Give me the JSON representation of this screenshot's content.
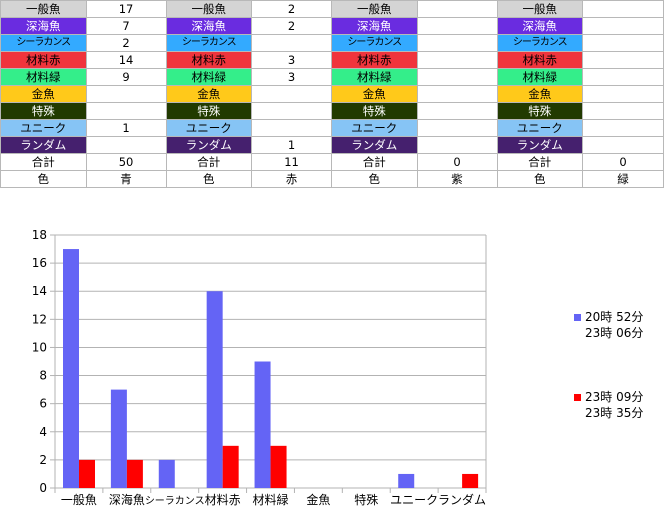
{
  "colors": {
    "一般魚": "#d4d4d4",
    "深海魚": "#6a2ce0",
    "シーラカンス": "#33aaff",
    "材料赤": "#f0343c",
    "材料緑": "#34ee8a",
    "金魚": "#ffc91a",
    "特殊": "#223a00",
    "ユニーク": "#86c4f5",
    "ランダム": "#45206e",
    "series_blue": "#6464f5",
    "series_red": "#ff0000"
  },
  "sheet": {
    "blocks": [
      {
        "rows": [
          {
            "label": "一般魚",
            "value": "17"
          },
          {
            "label": "深海魚",
            "value": "7"
          },
          {
            "label": "シーラカンス",
            "value": "2"
          },
          {
            "label": "材料赤",
            "value": "14"
          },
          {
            "label": "材料緑",
            "value": "9"
          },
          {
            "label": "金魚",
            "value": ""
          },
          {
            "label": "特殊",
            "value": ""
          },
          {
            "label": "ユニーク",
            "value": "1"
          },
          {
            "label": "ランダム",
            "value": ""
          }
        ],
        "total_label": "合計",
        "total": "50",
        "color_label": "色",
        "color": "青"
      },
      {
        "rows": [
          {
            "label": "一般魚",
            "value": "2"
          },
          {
            "label": "深海魚",
            "value": "2"
          },
          {
            "label": "シーラカンス",
            "value": ""
          },
          {
            "label": "材料赤",
            "value": "3"
          },
          {
            "label": "材料緑",
            "value": "3"
          },
          {
            "label": "金魚",
            "value": ""
          },
          {
            "label": "特殊",
            "value": ""
          },
          {
            "label": "ユニーク",
            "value": ""
          },
          {
            "label": "ランダム",
            "value": "1"
          }
        ],
        "total_label": "合計",
        "total": "11",
        "color_label": "色",
        "color": "赤"
      },
      {
        "rows": [
          {
            "label": "一般魚",
            "value": ""
          },
          {
            "label": "深海魚",
            "value": ""
          },
          {
            "label": "シーラカンス",
            "value": ""
          },
          {
            "label": "材料赤",
            "value": ""
          },
          {
            "label": "材料緑",
            "value": ""
          },
          {
            "label": "金魚",
            "value": ""
          },
          {
            "label": "特殊",
            "value": ""
          },
          {
            "label": "ユニーク",
            "value": ""
          },
          {
            "label": "ランダム",
            "value": ""
          }
        ],
        "total_label": "合計",
        "total": "0",
        "color_label": "色",
        "color": "紫"
      },
      {
        "rows": [
          {
            "label": "一般魚",
            "value": ""
          },
          {
            "label": "深海魚",
            "value": ""
          },
          {
            "label": "シーラカンス",
            "value": ""
          },
          {
            "label": "材料赤",
            "value": ""
          },
          {
            "label": "材料緑",
            "value": ""
          },
          {
            "label": "金魚",
            "value": ""
          },
          {
            "label": "特殊",
            "value": ""
          },
          {
            "label": "ユニーク",
            "value": ""
          },
          {
            "label": "ランダム",
            "value": ""
          }
        ],
        "total_label": "合計",
        "total": "0",
        "color_label": "色",
        "color": "緑"
      }
    ]
  },
  "chart_data": {
    "type": "bar",
    "categories": [
      "一般魚",
      "深海魚",
      "シーラカンス",
      "材料赤",
      "材料緑",
      "金魚",
      "特殊",
      "ユニーク",
      "ランダム"
    ],
    "series": [
      {
        "name": "20時 52分\n23時 06分",
        "values": [
          17,
          7,
          2,
          14,
          9,
          0,
          0,
          1,
          0
        ],
        "color": "#6464f5"
      },
      {
        "name": "23時 09分\n23時 35分",
        "values": [
          2,
          2,
          0,
          3,
          3,
          0,
          0,
          0,
          1
        ],
        "color": "#ff0000"
      }
    ],
    "ylim": [
      0,
      18
    ],
    "yticks": [
      0,
      2,
      4,
      6,
      8,
      10,
      12,
      14,
      16,
      18
    ],
    "grid": true,
    "legend": "right",
    "title": "",
    "xlabel": "",
    "ylabel": ""
  }
}
